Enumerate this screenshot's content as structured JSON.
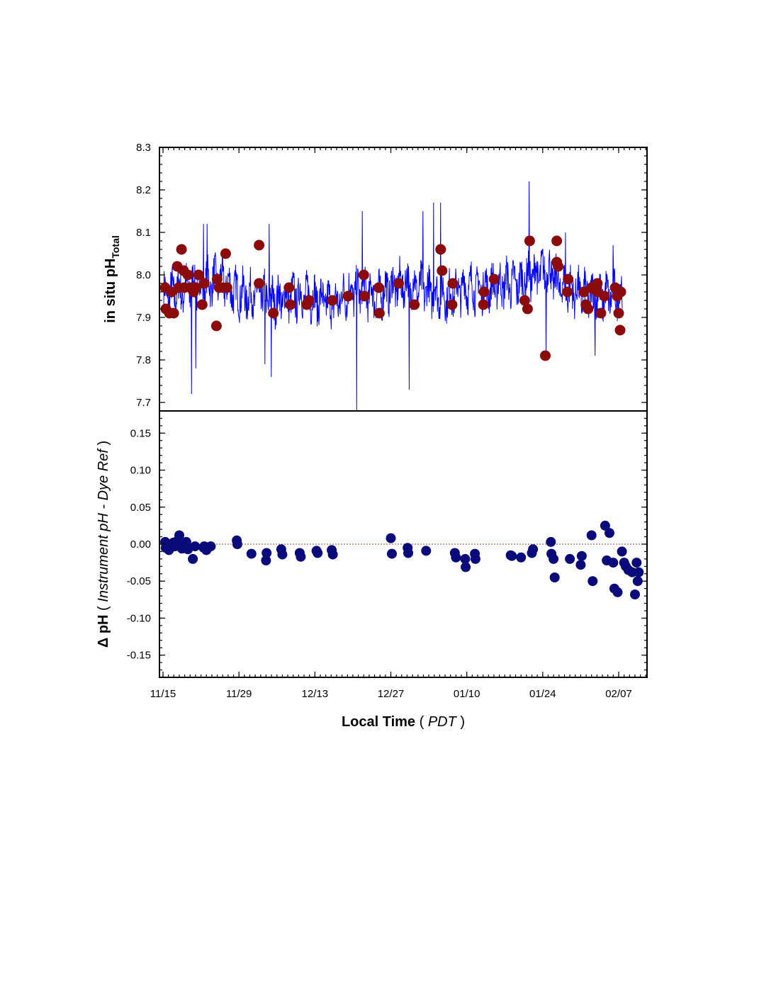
{
  "chart_data": [
    {
      "type": "line+scatter",
      "panel": "top",
      "ylabel": "in situ pH",
      "ylabel_sub": "Total",
      "ylim": [
        7.68,
        8.3
      ],
      "yticks": [
        "7.7",
        "7.8",
        "7.9",
        "8.0",
        "8.1",
        "8.2",
        "8.3"
      ],
      "xlim_days": [
        -0.5,
        64
      ],
      "colors": {
        "line": "#0000ff",
        "points": "#8b0a0a"
      },
      "series": [
        {
          "kind": "line",
          "note": "continuous instrument pH (high-frequency)",
          "x_day": [
            0,
            2,
            4,
            6,
            8,
            10,
            12,
            14,
            16,
            18,
            20,
            22,
            24,
            26,
            28,
            30,
            32,
            34,
            36,
            38,
            40,
            42,
            44,
            46,
            48,
            50,
            52,
            54,
            56,
            58,
            60,
            62,
            64
          ],
          "y": [
            7.95,
            7.96,
            7.97,
            7.98,
            7.99,
            7.96,
            7.95,
            7.95,
            7.94,
            7.95,
            7.95,
            7.94,
            7.93,
            7.96,
            7.96,
            7.95,
            7.97,
            7.98,
            7.97,
            7.96,
            7.95,
            7.97,
            7.97,
            7.97,
            7.98,
            7.98,
            8.0,
            8.01,
            7.97,
            7.96,
            7.95,
            7.95,
            7.96
          ],
          "ymin_spikes": [
            [
              4.0,
              7.72
            ],
            [
              4.6,
              7.78
            ],
            [
              14.3,
              7.79
            ],
            [
              15.2,
              7.76
            ],
            [
              27.2,
              7.68
            ],
            [
              34.6,
              7.73
            ],
            [
              60.7,
              7.81
            ],
            [
              53.8,
              7.82
            ]
          ],
          "ymax_spikes": [
            [
              5.7,
              8.12
            ],
            [
              6.2,
              8.12
            ],
            [
              14.9,
              8.12
            ],
            [
              28.0,
              8.15
            ],
            [
              36.5,
              8.15
            ],
            [
              38.0,
              8.17
            ],
            [
              39.0,
              8.17
            ],
            [
              51.4,
              8.22
            ],
            [
              56.5,
              8.1
            ],
            [
              63.2,
              8.07
            ]
          ]
        },
        {
          "kind": "scatter",
          "note": "discrete dye reference pH samples",
          "x_day": [
            0.3,
            0.4,
            0.9,
            1.2,
            1.5,
            2.0,
            2.2,
            2.6,
            2.9,
            3.0,
            3.5,
            3.9,
            4.3,
            4.6,
            5.0,
            5.5,
            5.8,
            7.5,
            7.6,
            7.9,
            8.4,
            8.8,
            9.0,
            13.5,
            13.5,
            15.5,
            17.7,
            17.9,
            20.2,
            20.5,
            23.8,
            26.0,
            28.2,
            28.3,
            30.3,
            30.4,
            33.1,
            35.3,
            39.0,
            39.2,
            40.6,
            40.7,
            45.0,
            45.1,
            46.5,
            50.8,
            51.2,
            51.5,
            53.7,
            55.3,
            55.3,
            55.5,
            56.8,
            56.9,
            59.1,
            59.4,
            59.7,
            60.2,
            61.0,
            61.0,
            61.5,
            62.0,
            63.5,
            63.8,
            64.0,
            64.2,
            64.3
          ],
          "y": [
            7.97,
            7.92,
            7.91,
            7.96,
            7.91,
            8.02,
            7.97,
            8.06,
            8.01,
            7.97,
            8.0,
            7.97,
            7.96,
            7.97,
            8.0,
            7.93,
            7.98,
            7.88,
            7.99,
            7.97,
            7.97,
            8.05,
            7.97,
            8.07,
            7.98,
            7.91,
            7.97,
            7.93,
            7.93,
            7.94,
            7.94,
            7.95,
            8.0,
            7.95,
            7.97,
            7.91,
            7.98,
            7.93,
            8.06,
            8.01,
            7.93,
            7.98,
            7.93,
            7.96,
            7.99,
            7.94,
            7.92,
            8.08,
            7.81,
            8.08,
            8.03,
            8.02,
            7.96,
            7.99,
            7.96,
            7.93,
            7.92,
            7.97,
            7.98,
            7.96,
            7.91,
            7.95,
            7.97,
            7.95,
            7.91,
            7.87,
            7.96
          ]
        }
      ]
    },
    {
      "type": "scatter",
      "panel": "bottom",
      "ylabel_prefix": "Δ pH",
      "ylabel_paren": "Instrument pH - Dye Ref",
      "ylim": [
        -0.18,
        0.18
      ],
      "yticks": [
        "-0.15",
        "-0.10",
        "-0.05",
        "0.00",
        "0.05",
        "0.10",
        "0.15"
      ],
      "reference_line": 0.0,
      "colors": {
        "points": "#0a0a7a",
        "reference": "#cc3333"
      },
      "xlabel": "Local Time",
      "xlabel_unit": "PDT",
      "xticks": [
        "11/15",
        "11/29",
        "12/13",
        "12/27",
        "01/10",
        "01/24",
        "02/07"
      ],
      "xtick_days": [
        0,
        14,
        28,
        42,
        56,
        70,
        84
      ],
      "series": [
        {
          "name": "",
          "x_day": [
            0.4,
            0.5,
            0.9,
            1.1,
            1.5,
            1.9,
            2.2,
            2.6,
            3.0,
            3.5,
            4.0,
            4.3,
            4.6,
            5.5,
            5.9,
            7.5,
            7.6,
            8.0,
            8.3,
            8.8,
            13.6,
            13.7,
            16.3,
            19.0,
            19.1,
            21.8,
            22.0,
            25.2,
            25.4,
            28.3,
            28.5,
            31.1,
            31.3,
            42.0,
            42.2,
            45.1,
            45.2,
            48.5,
            53.8,
            54.0,
            55.7,
            55.8,
            57.5,
            57.6,
            64.1,
            64.3,
            66.0,
            68.0,
            68.2,
            71.5,
            71.6,
            72.0,
            72.2,
            75.0,
            77.0,
            77.2,
            79.0,
            79.2,
            81.5,
            81.8,
            82.3,
            83.0,
            83.2,
            83.8,
            84.6,
            85.0,
            85.3,
            85.8,
            86.5,
            87.0,
            87.3,
            87.5,
            87.7
          ],
          "y": [
            0.003,
            -0.005,
            0.0,
            -0.008,
            -0.004,
            0.002,
            -0.003,
            0.004,
            0.012,
            -0.006,
            0.0,
            0.003,
            -0.007,
            -0.02,
            -0.003,
            -0.005,
            -0.003,
            -0.008,
            -0.005,
            -0.003,
            0.005,
            0.0,
            -0.013,
            -0.022,
            -0.012,
            -0.007,
            -0.014,
            -0.012,
            -0.017,
            -0.009,
            -0.012,
            -0.008,
            -0.014,
            0.008,
            -0.013,
            -0.005,
            -0.012,
            -0.009,
            -0.012,
            -0.018,
            -0.02,
            -0.031,
            -0.013,
            -0.02,
            -0.015,
            -0.016,
            -0.018,
            -0.012,
            -0.007,
            0.003,
            -0.013,
            -0.02,
            -0.045,
            -0.02,
            -0.028,
            -0.016,
            0.012,
            -0.05,
            0.025,
            -0.022,
            0.015,
            -0.025,
            -0.06,
            -0.065,
            -0.01,
            -0.025,
            -0.03,
            -0.035,
            -0.038,
            -0.068,
            -0.025,
            -0.05,
            -0.038
          ]
        }
      ]
    }
  ]
}
